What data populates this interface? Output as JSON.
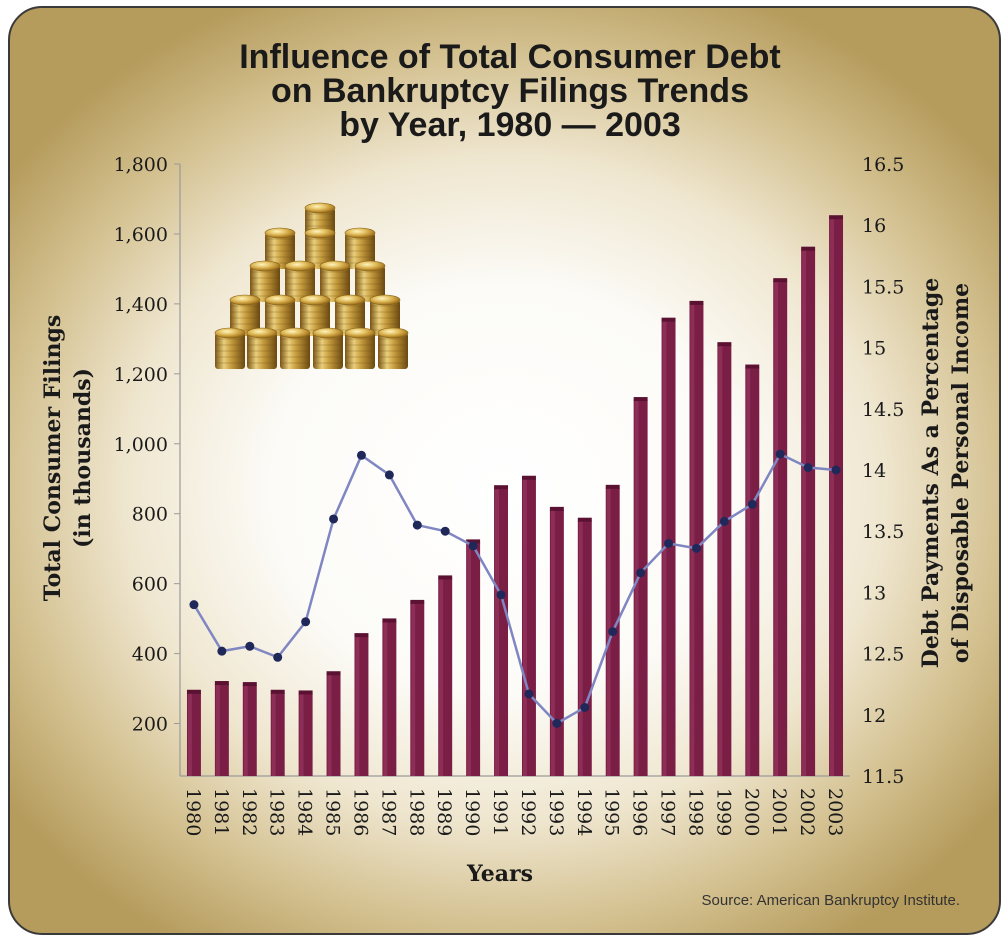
{
  "chart_data": {
    "type": "bar+line",
    "title_lines": [
      "Influence of Total Consumer Debt",
      "on Bankruptcy Filings Trends",
      "by Year, 1980 — 2003"
    ],
    "xlabel": "Years",
    "ylabel_left_lines": [
      "Total Consumer Filings",
      "(in thousands)"
    ],
    "ylabel_right_lines": [
      "Debt Payments As a Percentage",
      "of Disposable Personal Income"
    ],
    "source": "Source: American Bankruptcy Institute.",
    "categories": [
      "1980",
      "1981",
      "1982",
      "1983",
      "1984",
      "1985",
      "1986",
      "1987",
      "1988",
      "1989",
      "1990",
      "1991",
      "1992",
      "1993",
      "1994",
      "1995",
      "1996",
      "1997",
      "1998",
      "1999",
      "2000",
      "2001",
      "2002",
      "2003"
    ],
    "left_axis": {
      "ylim": [
        50,
        1800
      ],
      "ticks": [
        "200",
        "400",
        "600",
        "800",
        "1,000",
        "1,200",
        "1,400",
        "1,600",
        "1,800"
      ],
      "tick_values": [
        200,
        400,
        600,
        800,
        1000,
        1200,
        1400,
        1600,
        1800
      ]
    },
    "right_axis": {
      "ylim": [
        11.5,
        16.5
      ],
      "ticks": [
        "11.5",
        "12",
        "12.5",
        "13",
        "13.5",
        "14",
        "14.5",
        "15",
        "15.5",
        "16",
        "16.5"
      ],
      "tick_values": [
        11.5,
        12,
        12.5,
        13,
        13.5,
        14,
        14.5,
        15,
        15.5,
        16,
        16.5
      ]
    },
    "series": [
      {
        "name": "Total Consumer Filings (in thousands)",
        "axis": "left",
        "type": "bar",
        "color": "#7a1e46",
        "values": [
          288,
          313,
          310,
          288,
          286,
          341,
          450,
          492,
          545,
          615,
          718,
          873,
          900,
          811,
          780,
          874,
          1125,
          1352,
          1400,
          1282,
          1218,
          1465,
          1555,
          1645
        ]
      },
      {
        "name": "Debt Payments As a Percentage of Disposable Personal Income",
        "axis": "right",
        "type": "line",
        "color": "#7f86c2",
        "marker_color": "#20285a",
        "values": [
          12.9,
          12.52,
          12.56,
          12.47,
          12.76,
          13.6,
          14.12,
          13.96,
          13.55,
          13.5,
          13.38,
          12.98,
          12.17,
          11.93,
          12.06,
          12.68,
          13.16,
          13.4,
          13.36,
          13.58,
          13.72,
          14.13,
          14.02,
          14.0
        ]
      }
    ],
    "grid": false,
    "legend": "none"
  }
}
